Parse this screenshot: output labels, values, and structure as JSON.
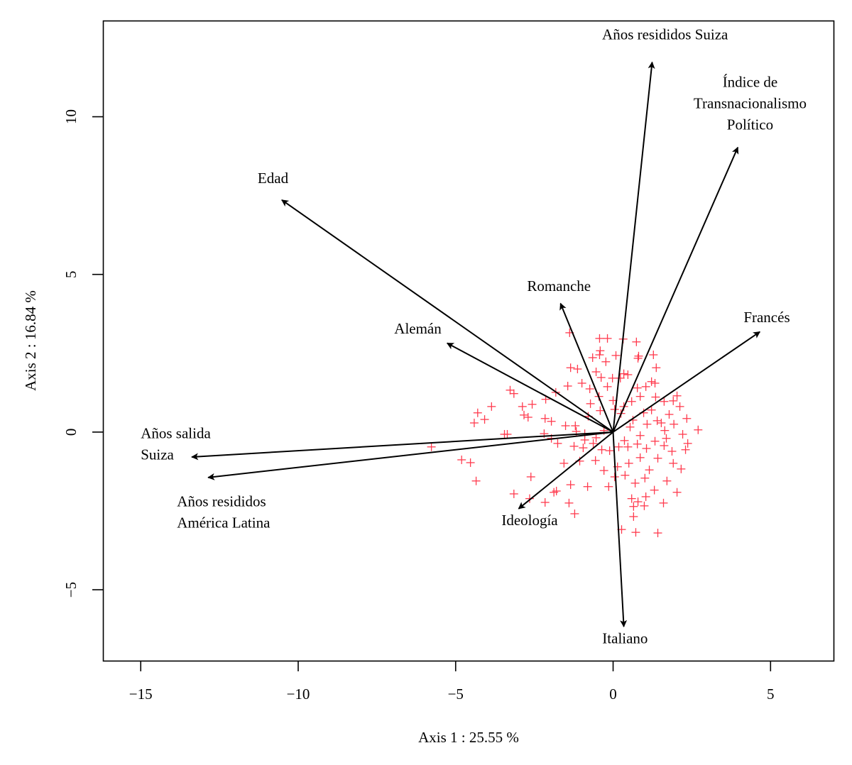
{
  "chart_data": {
    "type": "scatter",
    "subtype": "biplot",
    "title": "",
    "xlabel": "Axis 1 : 25.55 %",
    "ylabel": "Axis 2 : 16.84 %",
    "xlim": [
      -16.2,
      7.0
    ],
    "ylim": [
      -7.25,
      13.05
    ],
    "xticks": [
      -15,
      -10,
      -5,
      0,
      5
    ],
    "yticks": [
      -5,
      0,
      5,
      10
    ],
    "xtick_labels": [
      "−15",
      "−10",
      "−5",
      "0",
      "5"
    ],
    "ytick_labels": [
      "−5",
      "0",
      "5",
      "10"
    ],
    "grid": false,
    "point_marker": "plus",
    "point_color": "#ff3b4e",
    "vector_color": "#000000",
    "vectors": [
      {
        "name": "Años resididos Suiza",
        "lines": [
          "Años resididos Suiza"
        ],
        "x": 1.24,
        "y": 11.73,
        "label_x": 1.65,
        "label_y": 12.45
      },
      {
        "name": "Índice de Transnacionalismo Político",
        "lines": [
          "Índice de",
          "Transnacionalismo",
          "Político"
        ],
        "x": 3.96,
        "y": 9.03,
        "label_x": 4.35,
        "label_y": 10.95
      },
      {
        "name": "Edad",
        "lines": [
          "Edad"
        ],
        "x": -10.52,
        "y": 7.36,
        "label_x": -10.8,
        "label_y": 7.9
      },
      {
        "name": "Romanche",
        "lines": [
          "Romanche"
        ],
        "x": -1.67,
        "y": 4.08,
        "label_x": -1.72,
        "label_y": 4.48
      },
      {
        "name": "Alemán",
        "lines": [
          "Alemán"
        ],
        "x": -5.27,
        "y": 2.82,
        "label_x": -6.2,
        "label_y": 3.12
      },
      {
        "name": "Francés",
        "lines": [
          "Francés"
        ],
        "x": 4.66,
        "y": 3.18,
        "label_x": 4.88,
        "label_y": 3.48
      },
      {
        "name": "Años salida Suiza",
        "lines": [
          "Años salida",
          "Suiza"
        ],
        "x": -13.38,
        "y": -0.79,
        "label_x": -15.0,
        "label_y": -0.2,
        "anchor": "start"
      },
      {
        "name": "Años resididos América Latina",
        "lines": [
          "Años resididos",
          "América Latina"
        ],
        "x": -12.86,
        "y": -1.44,
        "label_x": -13.85,
        "label_y": -2.35,
        "anchor": "start"
      },
      {
        "name": "Ideología",
        "lines": [
          "Ideología"
        ],
        "x": -3.0,
        "y": -2.43,
        "label_x": -2.65,
        "label_y": -2.95
      },
      {
        "name": "Italiano",
        "lines": [
          "Italiano"
        ],
        "x": 0.34,
        "y": -6.17,
        "label_x": 0.38,
        "label_y": -6.7
      }
    ],
    "points": [
      [
        -1.38,
        3.15
      ],
      [
        -0.43,
        2.97
      ],
      [
        -0.18,
        2.97
      ],
      [
        0.32,
        2.95
      ],
      [
        0.74,
        2.86
      ],
      [
        -0.41,
        2.58
      ],
      [
        -0.43,
        2.45
      ],
      [
        -0.65,
        2.36
      ],
      [
        0.09,
        2.43
      ],
      [
        0.79,
        2.34
      ],
      [
        0.81,
        2.41
      ],
      [
        1.28,
        2.45
      ],
      [
        1.37,
        2.04
      ],
      [
        -1.35,
        2.04
      ],
      [
        -1.13,
        2.0
      ],
      [
        -0.54,
        1.91
      ],
      [
        -0.23,
        2.23
      ],
      [
        -0.02,
        1.71
      ],
      [
        0.47,
        1.82
      ],
      [
        0.34,
        1.85
      ],
      [
        0.23,
        1.71
      ],
      [
        -0.99,
        1.55
      ],
      [
        -0.74,
        1.37
      ],
      [
        -0.38,
        1.73
      ],
      [
        -0.18,
        1.44
      ],
      [
        1.22,
        1.6
      ],
      [
        1.33,
        1.55
      ],
      [
        1.04,
        1.44
      ],
      [
        0.77,
        1.4
      ],
      [
        -1.44,
        1.46
      ],
      [
        -4.3,
        0.61
      ],
      [
        -4.08,
        0.4
      ],
      [
        -4.41,
        0.29
      ],
      [
        -3.86,
        0.81
      ],
      [
        -2.83,
        0.54
      ],
      [
        -2.7,
        0.47
      ],
      [
        -2.88,
        0.81
      ],
      [
        -2.14,
        1.04
      ],
      [
        -1.82,
        1.26
      ],
      [
        -2.57,
        0.88
      ],
      [
        -2.16,
        0.43
      ],
      [
        -1.96,
        0.34
      ],
      [
        -3.27,
        1.33
      ],
      [
        -3.15,
        1.22
      ],
      [
        -3.45,
        -0.07
      ],
      [
        -3.36,
        -0.07
      ],
      [
        -2.19,
        -0.05
      ],
      [
        -5.77,
        -0.47
      ],
      [
        -1.76,
        -0.36
      ],
      [
        -4.81,
        -0.88
      ],
      [
        -4.53,
        -0.97
      ],
      [
        -4.35,
        -1.55
      ],
      [
        -2.61,
        -1.42
      ],
      [
        -3.15,
        -1.96
      ],
      [
        -2.65,
        -2.11
      ],
      [
        -1.8,
        -1.87
      ],
      [
        -2.16,
        -2.23
      ],
      [
        -1.4,
        -2.25
      ],
      [
        -1.51,
        0.2
      ],
      [
        -1.2,
        0.2
      ],
      [
        -0.79,
        0.5
      ],
      [
        -0.41,
        0.68
      ],
      [
        0.05,
        0.72
      ],
      [
        0.34,
        0.81
      ],
      [
        0.59,
        0.97
      ],
      [
        0.86,
        1.13
      ],
      [
        1.35,
        1.11
      ],
      [
        1.62,
        0.97
      ],
      [
        1.91,
        0.99
      ],
      [
        2.12,
        0.81
      ],
      [
        2.34,
        0.43
      ],
      [
        2.7,
        0.07
      ],
      [
        -1.17,
        0.02
      ],
      [
        -0.9,
        -0.05
      ],
      [
        -0.54,
        -0.18
      ],
      [
        -0.29,
        0.05
      ],
      [
        0.54,
        0.16
      ],
      [
        0.86,
        -0.11
      ],
      [
        1.08,
        0.25
      ],
      [
        1.4,
        0.36
      ],
      [
        1.64,
        0.05
      ],
      [
        1.93,
        0.25
      ],
      [
        2.21,
        -0.07
      ],
      [
        2.37,
        -0.36
      ],
      [
        -1.24,
        -0.45
      ],
      [
        -0.95,
        -0.5
      ],
      [
        -0.63,
        -0.36
      ],
      [
        -0.36,
        -0.56
      ],
      [
        -0.11,
        -0.59
      ],
      [
        0.18,
        -0.47
      ],
      [
        0.47,
        -0.47
      ],
      [
        0.77,
        -0.38
      ],
      [
        1.06,
        -0.52
      ],
      [
        1.33,
        -0.29
      ],
      [
        1.62,
        -0.43
      ],
      [
        1.87,
        -0.61
      ],
      [
        2.3,
        -0.56
      ],
      [
        -1.56,
        -0.99
      ],
      [
        -1.06,
        -0.92
      ],
      [
        -0.56,
        -0.9
      ],
      [
        -0.29,
        -1.22
      ],
      [
        0.14,
        -1.1
      ],
      [
        0.5,
        -0.99
      ],
      [
        0.86,
        -0.81
      ],
      [
        1.15,
        -1.2
      ],
      [
        1.42,
        -0.83
      ],
      [
        1.91,
        -0.99
      ],
      [
        2.16,
        -1.17
      ],
      [
        -1.88,
        -1.91
      ],
      [
        -1.35,
        -1.67
      ],
      [
        -0.81,
        -1.73
      ],
      [
        -0.14,
        -1.73
      ],
      [
        0.38,
        -1.37
      ],
      [
        0.7,
        -1.62
      ],
      [
        1.01,
        -1.46
      ],
      [
        1.31,
        -1.84
      ],
      [
        1.71,
        -1.55
      ],
      [
        2.03,
        -1.91
      ],
      [
        -1.22,
        -2.59
      ],
      [
        0.05,
        -1.42
      ],
      [
        0.59,
        -2.11
      ],
      [
        0.79,
        -2.21
      ],
      [
        0.99,
        -2.34
      ],
      [
        1.04,
        -2.05
      ],
      [
        0.65,
        -2.36
      ],
      [
        1.6,
        -2.25
      ],
      [
        0.27,
        -3.09
      ],
      [
        0.65,
        -2.68
      ],
      [
        0.72,
        -3.18
      ],
      [
        1.42,
        -3.2
      ],
      [
        -0.72,
        0.9
      ],
      [
        -0.45,
        1.13
      ],
      [
        0.0,
        1.0
      ],
      [
        0.25,
        0.59
      ],
      [
        0.63,
        0.38
      ],
      [
        0.97,
        0.61
      ],
      [
        1.22,
        0.7
      ],
      [
        1.53,
        0.29
      ],
      [
        1.78,
        0.56
      ],
      [
        2.03,
        1.15
      ],
      [
        1.69,
        -0.2
      ],
      [
        0.36,
        -0.27
      ],
      [
        -0.9,
        -0.25
      ],
      [
        -1.96,
        -0.2
      ]
    ]
  }
}
